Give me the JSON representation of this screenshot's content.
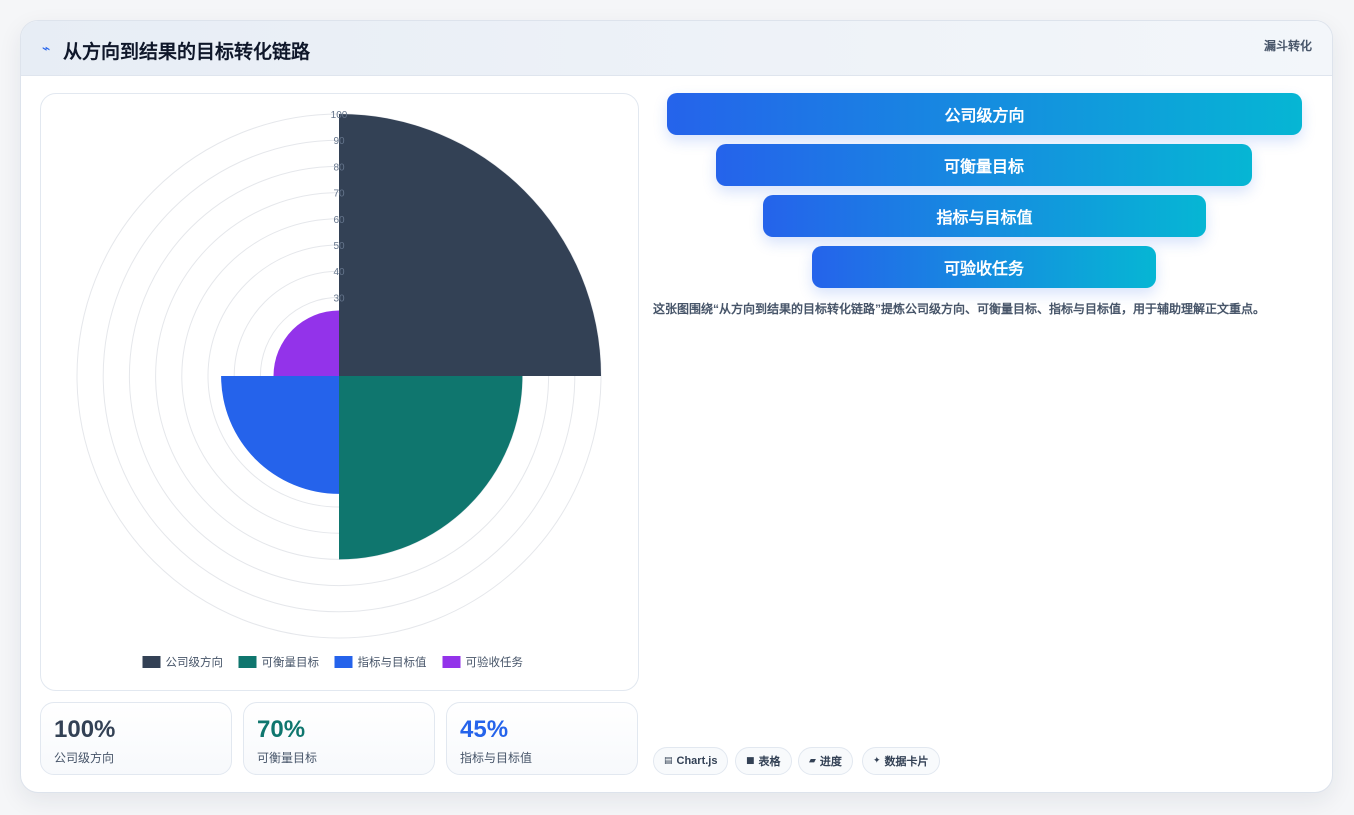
{
  "header": {
    "title": "从方向到结果的目标转化链路",
    "tag": "漏斗转化",
    "title_icon": "pulse-icon"
  },
  "chart_data": {
    "type": "polarArea",
    "categories": [
      "公司级方向",
      "可衡量目标",
      "指标与目标值",
      "可验收任务"
    ],
    "values": [
      100,
      70,
      45,
      25
    ],
    "colors": [
      "#334155",
      "#0f766e",
      "#2563eb",
      "#9333ea"
    ],
    "r_range": [
      0,
      100
    ],
    "r_ticks": [
      "30",
      "40",
      "50",
      "60",
      "70",
      "80",
      "90",
      "100"
    ],
    "legend_position": "bottom",
    "grid": true
  },
  "kpis": [
    {
      "value": "100%",
      "label": "公司级方向",
      "color": "#334155"
    },
    {
      "value": "70%",
      "label": "可衡量目标",
      "color": "#0f766e"
    },
    {
      "value": "45%",
      "label": "指标与目标值",
      "color": "#2563eb"
    }
  ],
  "funnel": [
    "公司级方向",
    "可衡量目标",
    "指标与目标值",
    "可验收任务"
  ],
  "description": "这张图围绕“从方向到结果的目标转化链路”提炼公司级方向、可衡量目标、指标与目标值，用于辅助理解正文重点。",
  "chips": [
    {
      "icon": "chart-icon",
      "glyph": "▤",
      "label": "Chart.js"
    },
    {
      "icon": "table-icon",
      "glyph": "■",
      "label": "表格"
    },
    {
      "icon": "progress-icon",
      "glyph": "▰",
      "label": "进度"
    },
    {
      "icon": "card-icon",
      "glyph": "✦",
      "label": "数据卡片"
    }
  ]
}
